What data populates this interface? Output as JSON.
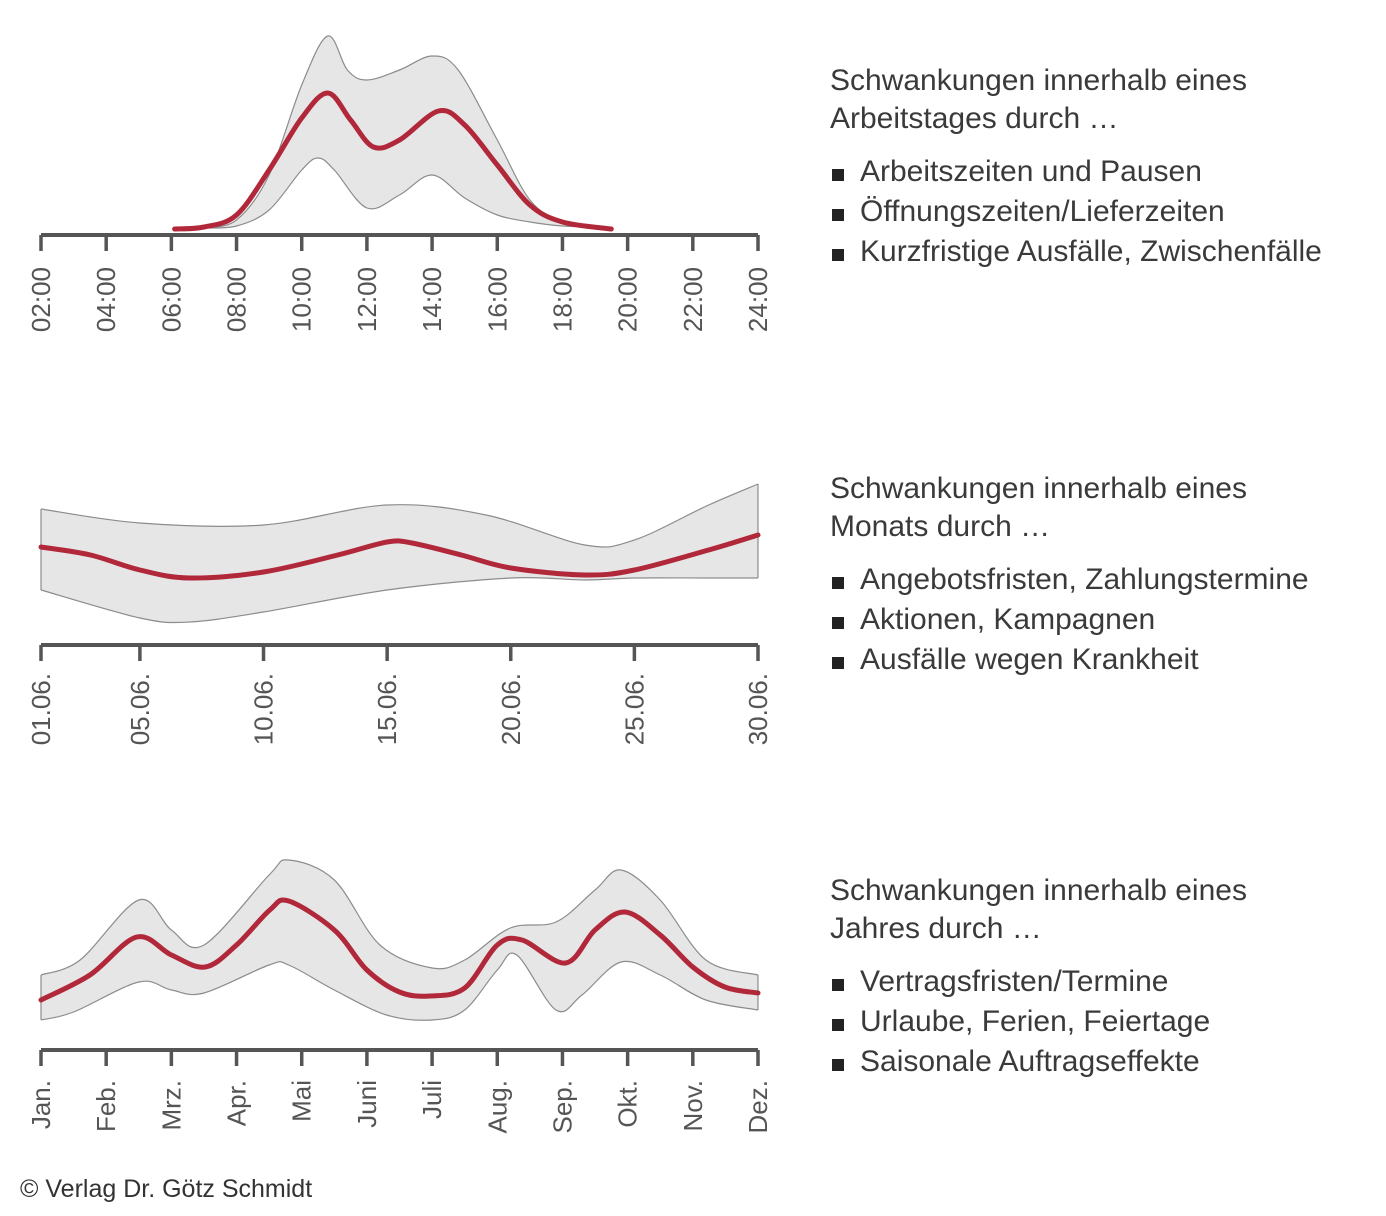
{
  "colors": {
    "mean": "#b0283a",
    "band": "#e6e6e6",
    "band_edge": "#8c8c8c",
    "axis": "#555555"
  },
  "chart_data": [
    {
      "type": "area",
      "name": "day",
      "xlim": [
        2,
        24
      ],
      "ylim": [
        0,
        100
      ],
      "xticks": [
        2,
        4,
        6,
        8,
        10,
        12,
        14,
        16,
        18,
        20,
        22,
        24
      ],
      "xtick_labels": [
        "02:00",
        "04:00",
        "06:00",
        "08:00",
        "10:00",
        "12:00",
        "14:00",
        "16:00",
        "18:00",
        "20:00",
        "22:00",
        "24:00"
      ],
      "mean": {
        "x": [
          6.1,
          7,
          8,
          9,
          10,
          10.8,
          11.5,
          12.2,
          13,
          14.2,
          15,
          16,
          17,
          18,
          19.5
        ],
        "y": [
          3,
          4,
          10,
          32.5,
          58.5,
          71,
          57.5,
          44,
          47.5,
          62,
          55,
          35,
          15,
          6.5,
          3
        ]
      },
      "upper": {
        "x": [
          7,
          8,
          9,
          10,
          10.8,
          11.4,
          12,
          13,
          14,
          14.8,
          16,
          17,
          18,
          19
        ],
        "y": [
          3.5,
          7.5,
          30,
          75,
          99.5,
          82.5,
          77.5,
          82.5,
          89.5,
          82.5,
          47.5,
          17.5,
          6.5,
          4
        ]
      },
      "lower": {
        "x": [
          7,
          8,
          9,
          10,
          10.5,
          11,
          12,
          13,
          14,
          15,
          16,
          17,
          18,
          19
        ],
        "y": [
          3.5,
          4.5,
          12.5,
          32.5,
          38.5,
          32.5,
          13.5,
          20,
          30,
          18.5,
          10,
          6.5,
          4.5,
          4
        ]
      }
    },
    {
      "type": "area",
      "name": "month",
      "xlim": [
        1,
        30
      ],
      "ylim": [
        0,
        100
      ],
      "xticks": [
        1,
        5,
        10,
        15,
        20,
        25,
        30
      ],
      "xtick_labels": [
        "01.06.",
        "05.06.",
        "10.06.",
        "15.06.",
        "20.06.",
        "25.06.",
        "30.06."
      ],
      "mean": {
        "x": [
          1,
          3,
          5,
          7,
          10,
          13,
          15,
          16,
          18,
          20,
          23,
          25,
          28,
          30
        ],
        "y": [
          49,
          45,
          37.5,
          33.5,
          36.5,
          45,
          51.5,
          51,
          45,
          38.5,
          35,
          37.5,
          47.5,
          55
        ]
      },
      "upper": {
        "x": [
          1,
          5,
          10,
          15,
          19,
          23,
          25,
          28,
          30
        ],
        "y": [
          68,
          61,
          60,
          70,
          65,
          50,
          52.5,
          70,
          80.5
        ]
      },
      "lower": {
        "x": [
          1,
          5,
          7,
          10,
          15,
          20,
          23,
          25,
          28,
          30
        ],
        "y": [
          27.5,
          13.5,
          11.5,
          16.5,
          27.5,
          33.5,
          32.5,
          33.5,
          33.5,
          33.5
        ]
      }
    },
    {
      "type": "area",
      "name": "year",
      "xlim": [
        1,
        12
      ],
      "ylim": [
        0,
        100
      ],
      "xticks": [
        1,
        2,
        3,
        4,
        5,
        6,
        7,
        8,
        9,
        10,
        11,
        12
      ],
      "xtick_labels": [
        "Jan.",
        "Feb.",
        "Mrz.",
        "Apr.",
        "Mai",
        "Juni",
        "Juli",
        "Aug.",
        "Sep.",
        "Okt.",
        "Nov.",
        "Dez."
      ],
      "mean": {
        "x": [
          1,
          1.75,
          2.47,
          3,
          3.52,
          4,
          4.51,
          4.8,
          5.5,
          6,
          6.5,
          6.97,
          7.5,
          8,
          8.38,
          9.05,
          9.5,
          9.96,
          10.5,
          11,
          11.49,
          12
        ],
        "y": [
          25,
          37.5,
          56.5,
          47.5,
          41.5,
          52.5,
          70,
          74.5,
          60,
          40,
          29,
          27,
          31,
          52.5,
          55,
          43.5,
          60,
          69,
          57.5,
          41.5,
          31.5,
          28.5
        ]
      },
      "upper": {
        "x": [
          1,
          1.6,
          2.5,
          3,
          3.5,
          4.5,
          4.8,
          5.5,
          6.2,
          7,
          7.5,
          8.2,
          8.9,
          9.5,
          9.9,
          10.5,
          11.2,
          12
        ],
        "y": [
          37.5,
          45,
          75,
          60,
          52.5,
          87.5,
          95,
          85,
          52.5,
          41,
          45,
          61,
          64,
          80,
          90,
          75,
          45,
          37.5
        ]
      },
      "lower": {
        "x": [
          1,
          1.5,
          2.5,
          3,
          3.5,
          4.5,
          4.8,
          5.5,
          6.3,
          7,
          7.5,
          8,
          8.3,
          8.9,
          9.3,
          9.9,
          10.5,
          11.2,
          12
        ],
        "y": [
          15,
          19,
          34,
          30,
          28.5,
          42.5,
          42.5,
          30,
          17.5,
          15,
          20,
          40,
          47.5,
          20,
          27.5,
          44,
          37.5,
          25,
          20
        ]
      }
    }
  ],
  "panels": [
    {
      "title": [
        "Schwankungen innerhalb eines",
        "Arbeitstages durch …"
      ],
      "items": [
        "Arbeitszeiten und Pausen",
        "Öffnungszeiten/Lieferzeiten",
        "Kurzfristige Ausfälle, Zwischenfälle"
      ]
    },
    {
      "title": [
        "Schwankungen innerhalb eines",
        "Monats durch …"
      ],
      "items": [
        "Angebotsfristen, Zahlungstermine",
        "Aktionen, Kampagnen",
        "Ausfälle wegen Krankheit"
      ]
    },
    {
      "title": [
        "Schwankungen innerhalb eines",
        "Jahres durch …"
      ],
      "items": [
        "Vertragsfristen/Termine",
        "Urlaube, Ferien, Feiertage",
        "Saisonale Auftragseffekte"
      ]
    }
  ],
  "footer": {
    "copyright": "© Verlag Dr. Götz Schmidt"
  }
}
